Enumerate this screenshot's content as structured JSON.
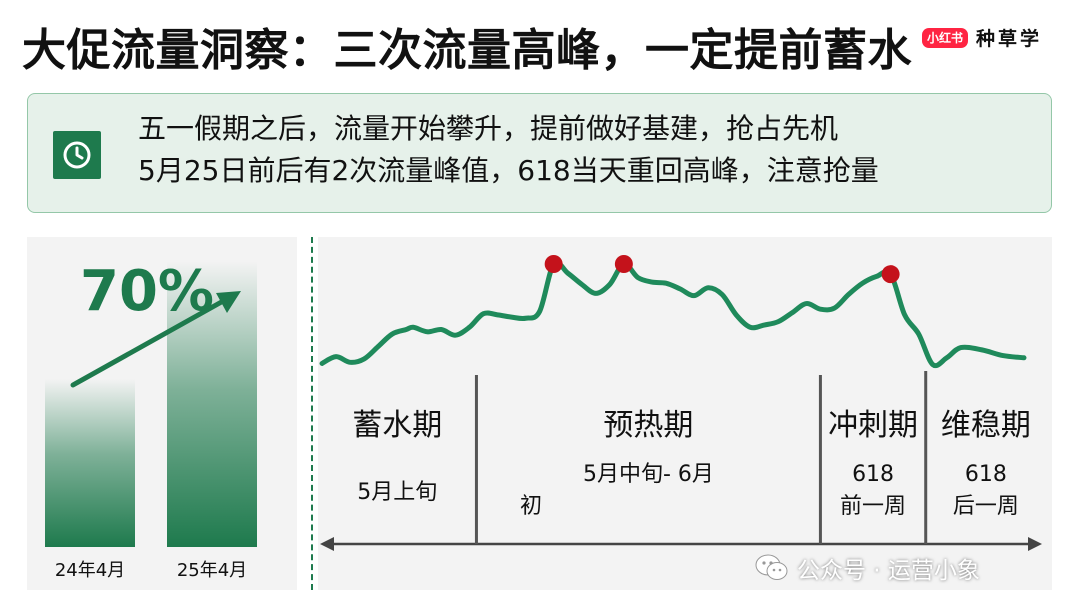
{
  "header": {
    "title": "大促流量洞察：三次流量高峰，一定提前蓄水",
    "brand_logo": "小红书",
    "brand_name": "种草学"
  },
  "info": {
    "icon": "clock-icon",
    "lines": [
      "五一假期之后，流量开始攀升，提前做好基建，抢占先机",
      "5月25日前后有2次流量峰值，618当天重回高峰，注意抢量"
    ]
  },
  "colors": {
    "accent": "#1e7a4d",
    "line": "#1f8a5b",
    "peak": "#c4121b",
    "box_bg": "#e6f1ea",
    "panel_bg": "#f3f3f3"
  },
  "chart_data": [
    {
      "type": "bar",
      "categories": [
        "24年4月",
        "25年4月"
      ],
      "growth_label": "70%",
      "growth": 0.7,
      "relative_values": [
        1,
        1.7
      ]
    },
    {
      "type": "line",
      "x_range": [
        0,
        100
      ],
      "y_range": [
        0,
        100
      ],
      "values": [
        {
          "x": 0,
          "y": 12
        },
        {
          "x": 2,
          "y": 18
        },
        {
          "x": 4,
          "y": 13
        },
        {
          "x": 6,
          "y": 16
        },
        {
          "x": 8,
          "y": 27
        },
        {
          "x": 10,
          "y": 38
        },
        {
          "x": 12,
          "y": 42
        },
        {
          "x": 13,
          "y": 44
        },
        {
          "x": 15,
          "y": 40
        },
        {
          "x": 17,
          "y": 42
        },
        {
          "x": 19,
          "y": 37
        },
        {
          "x": 21,
          "y": 44
        },
        {
          "x": 23,
          "y": 56
        },
        {
          "x": 25,
          "y": 55
        },
        {
          "x": 27,
          "y": 53
        },
        {
          "x": 29,
          "y": 52
        },
        {
          "x": 31,
          "y": 58
        },
        {
          "x": 33,
          "y": 100
        },
        {
          "x": 35,
          "y": 92
        },
        {
          "x": 37,
          "y": 82
        },
        {
          "x": 39,
          "y": 74
        },
        {
          "x": 41,
          "y": 82
        },
        {
          "x": 43,
          "y": 100
        },
        {
          "x": 45,
          "y": 88
        },
        {
          "x": 47,
          "y": 84
        },
        {
          "x": 49,
          "y": 83
        },
        {
          "x": 51,
          "y": 78
        },
        {
          "x": 53,
          "y": 72
        },
        {
          "x": 55,
          "y": 79
        },
        {
          "x": 57,
          "y": 73
        },
        {
          "x": 59,
          "y": 55
        },
        {
          "x": 61,
          "y": 44
        },
        {
          "x": 63,
          "y": 46
        },
        {
          "x": 65,
          "y": 49
        },
        {
          "x": 67,
          "y": 57
        },
        {
          "x": 69,
          "y": 65
        },
        {
          "x": 71,
          "y": 60
        },
        {
          "x": 73,
          "y": 61
        },
        {
          "x": 75,
          "y": 73
        },
        {
          "x": 77,
          "y": 83
        },
        {
          "x": 79,
          "y": 89
        },
        {
          "x": 81,
          "y": 91
        },
        {
          "x": 83,
          "y": 55
        },
        {
          "x": 85,
          "y": 38
        },
        {
          "x": 87,
          "y": 11
        },
        {
          "x": 89,
          "y": 17
        },
        {
          "x": 91,
          "y": 26
        },
        {
          "x": 94,
          "y": 24
        },
        {
          "x": 97,
          "y": 19
        },
        {
          "x": 100,
          "y": 17
        }
      ],
      "peaks": [
        {
          "x": 33,
          "y": 100
        },
        {
          "x": 43,
          "y": 100
        },
        {
          "x": 81,
          "y": 91
        }
      ],
      "phase_boundaries": [
        22,
        71,
        86
      ],
      "phases": [
        {
          "name": "蓄水期",
          "time": [
            "5月上旬"
          ]
        },
        {
          "name": "预热期",
          "time": [
            "5月中旬- 6月",
            "初"
          ]
        },
        {
          "name": "冲刺期",
          "time": [
            "618",
            "前一周"
          ]
        },
        {
          "name": "维稳期",
          "time": [
            "618",
            "后一周"
          ]
        }
      ]
    }
  ],
  "watermark": {
    "icon": "wechat-icon",
    "text": "公众号 · 运营小象"
  }
}
